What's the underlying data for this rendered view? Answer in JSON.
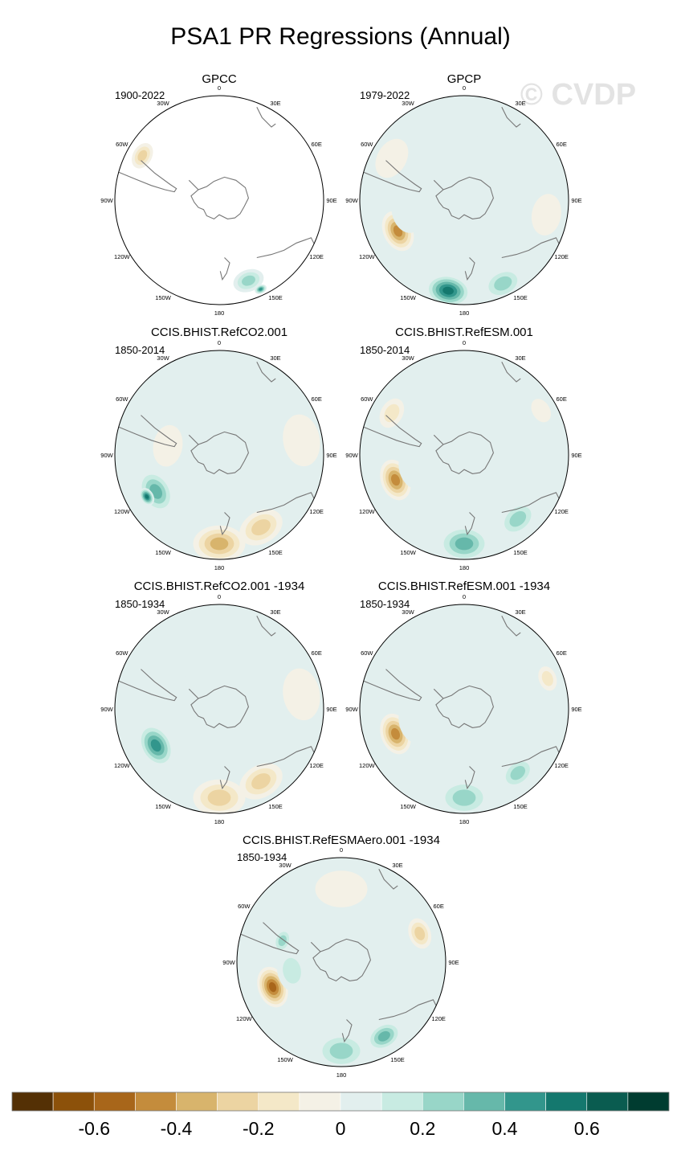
{
  "chart_data": {
    "type": "heatmap",
    "title": "PSA1 PR Regressions (Annual)",
    "watermark": "© CVDP",
    "projection": "south-polar stereographic",
    "colorbar": {
      "levels": [
        -0.7,
        -0.6,
        -0.5,
        -0.4,
        -0.3,
        -0.2,
        -0.1,
        0,
        0.1,
        0.2,
        0.3,
        0.4,
        0.5,
        0.6,
        0.7
      ],
      "tick_labels": [
        "-0.6",
        "-0.4",
        "-0.2",
        "0",
        "0.2",
        "0.4",
        "0.6"
      ],
      "tick_values": [
        -0.6,
        -0.4,
        -0.2,
        0,
        0.2,
        0.4,
        0.6
      ],
      "colors": [
        "#543005",
        "#8c510a",
        "#a8661a",
        "#c48c3c",
        "#d8b46c",
        "#ecd4a2",
        "#f4e8c8",
        "#f4f1e6",
        "#e2efee",
        "#c8ebe2",
        "#98d6c8",
        "#66b8aa",
        "#32968c",
        "#14786e",
        "#0a5c50",
        "#003c30"
      ]
    },
    "longitude_labels": [
      "0",
      "30E",
      "60E",
      "90E",
      "120E",
      "150E",
      "180",
      "150W",
      "120W",
      "90W",
      "60W",
      "30W"
    ],
    "panels": [
      {
        "title": "GPCC",
        "period": "1900-2022",
        "anomalies": [
          {
            "lon": 300,
            "r": 0.85,
            "val": -0.25,
            "size": 0.13
          },
          {
            "lon": 160,
            "r": 0.82,
            "val": 0.25,
            "size": 0.15
          },
          {
            "lon": 155,
            "r": 0.94,
            "val": 0.45,
            "size": 0.06
          }
        ]
      },
      {
        "title": "GPCP",
        "period": "1979-2022",
        "anomalies": [
          {
            "lon": 245,
            "r": 0.7,
            "val": -0.5,
            "size": 0.2
          },
          {
            "lon": 260,
            "r": 0.55,
            "val": 0.15,
            "size": 0.22
          },
          {
            "lon": 190,
            "r": 0.88,
            "val": 0.6,
            "size": 0.22
          },
          {
            "lon": 155,
            "r": 0.88,
            "val": 0.35,
            "size": 0.2
          },
          {
            "lon": 30,
            "r": 0.7,
            "val": 0.15,
            "size": 0.25
          },
          {
            "lon": 300,
            "r": 0.8,
            "val": -0.15,
            "size": 0.2
          },
          {
            "lon": 100,
            "r": 0.8,
            "val": -0.12,
            "size": 0.2
          }
        ]
      },
      {
        "title": "CCIS.BHIST.RefCO2.001",
        "period": "1850-2014",
        "anomalies": [
          {
            "lon": 240,
            "r": 0.7,
            "val": 0.4,
            "size": 0.22
          },
          {
            "lon": 240,
            "r": 0.8,
            "val": 0.55,
            "size": 0.09
          },
          {
            "lon": 180,
            "r": 0.85,
            "val": -0.4,
            "size": 0.25
          },
          {
            "lon": 150,
            "r": 0.8,
            "val": -0.3,
            "size": 0.22
          },
          {
            "lon": 0,
            "r": 0.4,
            "val": 0.12,
            "size": 0.4
          },
          {
            "lon": 280,
            "r": 0.5,
            "val": -0.12,
            "size": 0.2
          },
          {
            "lon": 80,
            "r": 0.8,
            "val": -0.12,
            "size": 0.25
          }
        ]
      },
      {
        "title": "CCIS.BHIST.RefESM.001",
        "period": "1850-2014",
        "anomalies": [
          {
            "lon": 250,
            "r": 0.7,
            "val": -0.5,
            "size": 0.2
          },
          {
            "lon": 255,
            "r": 0.5,
            "val": 0.15,
            "size": 0.2
          },
          {
            "lon": 180,
            "r": 0.85,
            "val": 0.4,
            "size": 0.25
          },
          {
            "lon": 140,
            "r": 0.8,
            "val": 0.3,
            "size": 0.2
          },
          {
            "lon": 0,
            "r": 0.5,
            "val": 0.12,
            "size": 0.4
          },
          {
            "lon": 300,
            "r": 0.8,
            "val": -0.2,
            "size": 0.15
          },
          {
            "lon": 60,
            "r": 0.85,
            "val": -0.15,
            "size": 0.12
          }
        ]
      },
      {
        "title": "CCIS.BHIST.RefCO2.001 -1934",
        "period": "1850-1934",
        "anomalies": [
          {
            "lon": 240,
            "r": 0.7,
            "val": 0.45,
            "size": 0.22
          },
          {
            "lon": 180,
            "r": 0.85,
            "val": -0.35,
            "size": 0.25
          },
          {
            "lon": 150,
            "r": 0.8,
            "val": -0.3,
            "size": 0.22
          },
          {
            "lon": 330,
            "r": 0.6,
            "val": 0.15,
            "size": 0.25
          },
          {
            "lon": 0,
            "r": 0.4,
            "val": 0.1,
            "size": 0.35
          },
          {
            "lon": 80,
            "r": 0.8,
            "val": -0.12,
            "size": 0.25
          }
        ]
      },
      {
        "title": "CCIS.BHIST.RefESM.001 -1934",
        "period": "1850-1934",
        "anomalies": [
          {
            "lon": 250,
            "r": 0.7,
            "val": -0.45,
            "size": 0.2
          },
          {
            "lon": 255,
            "r": 0.5,
            "val": 0.12,
            "size": 0.2
          },
          {
            "lon": 180,
            "r": 0.85,
            "val": 0.35,
            "size": 0.25
          },
          {
            "lon": 140,
            "r": 0.8,
            "val": 0.3,
            "size": 0.18
          },
          {
            "lon": 30,
            "r": 0.55,
            "val": 0.1,
            "size": 0.35
          },
          {
            "lon": 70,
            "r": 0.85,
            "val": -0.18,
            "size": 0.12
          }
        ]
      },
      {
        "title": "CCIS.BHIST.RefESMAero.001 -1934",
        "period": "1850-1934",
        "anomalies": [
          {
            "lon": 250,
            "r": 0.7,
            "val": -0.55,
            "size": 0.2
          },
          {
            "lon": 260,
            "r": 0.48,
            "val": 0.18,
            "size": 0.2
          },
          {
            "lon": 180,
            "r": 0.85,
            "val": 0.35,
            "size": 0.25
          },
          {
            "lon": 150,
            "r": 0.82,
            "val": 0.4,
            "size": 0.18
          },
          {
            "lon": 0,
            "r": 0.7,
            "val": -0.15,
            "size": 0.25
          },
          {
            "lon": 70,
            "r": 0.8,
            "val": -0.25,
            "size": 0.15
          },
          {
            "lon": 290,
            "r": 0.6,
            "val": 0.3,
            "size": 0.12
          },
          {
            "lon": 120,
            "r": 0.4,
            "val": 0.12,
            "size": 0.25
          }
        ]
      }
    ]
  }
}
